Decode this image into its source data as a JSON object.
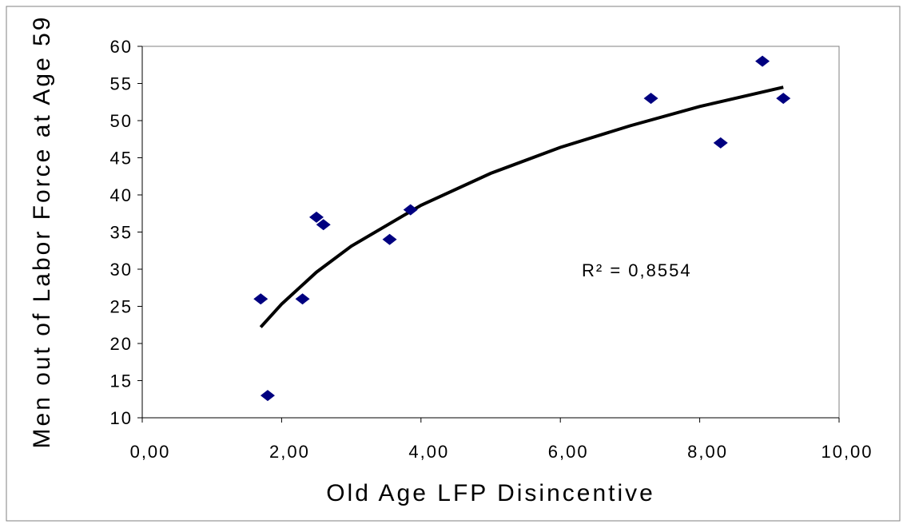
{
  "chart_data": {
    "type": "scatter",
    "x_label": "Old Age LFP Disincentive",
    "y_label": "Men out of Labor Force at Age 59",
    "annotation": "R² = 0,8554",
    "xlim": [
      0,
      10
    ],
    "xticks": [
      {
        "value": 0,
        "label": "0,00"
      },
      {
        "value": 2,
        "label": "2,00"
      },
      {
        "value": 4,
        "label": "4,00"
      },
      {
        "value": 6,
        "label": "6,00"
      },
      {
        "value": 8,
        "label": "8,00"
      },
      {
        "value": 10,
        "label": "10,00"
      }
    ],
    "ylim": [
      10,
      60
    ],
    "yticks": [
      10,
      15,
      20,
      25,
      30,
      35,
      40,
      45,
      50,
      55,
      60
    ],
    "series": [
      {
        "color": "#000080",
        "x": [
          1.7,
          1.8,
          2.3,
          2.5,
          2.6,
          3.55,
          3.85,
          7.3,
          8.3,
          8.9,
          9.2
        ],
        "values": [
          26,
          13,
          26,
          37,
          36,
          34,
          38,
          53,
          47,
          58,
          53
        ]
      }
    ],
    "trendline": {
      "color": "#000000",
      "x": [
        1.7,
        2,
        2.5,
        3,
        4,
        5,
        6,
        7,
        8,
        9.2
      ],
      "values": [
        22.2,
        25.3,
        29.6,
        33.1,
        38.6,
        42.9,
        46.4,
        49.3,
        51.9,
        54.5
      ]
    }
  }
}
